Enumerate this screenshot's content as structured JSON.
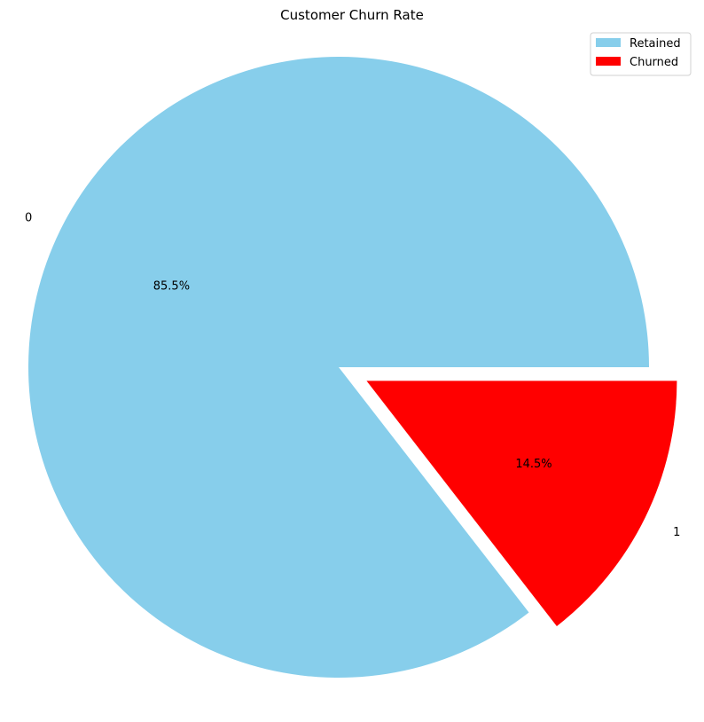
{
  "chart_data": {
    "type": "pie",
    "title": "Customer Churn Rate",
    "categories": [
      "0",
      "1"
    ],
    "values": [
      85.5,
      14.5
    ],
    "value_labels": [
      "85.5%",
      "14.5%"
    ],
    "legend_labels": [
      "Retained",
      "Churned"
    ],
    "colors": [
      "#87ceeb",
      "#ff0000"
    ],
    "exploded": [
      false,
      true
    ],
    "start_angle": 0,
    "direction": "counterclockwise",
    "legend_position": "top-right"
  }
}
